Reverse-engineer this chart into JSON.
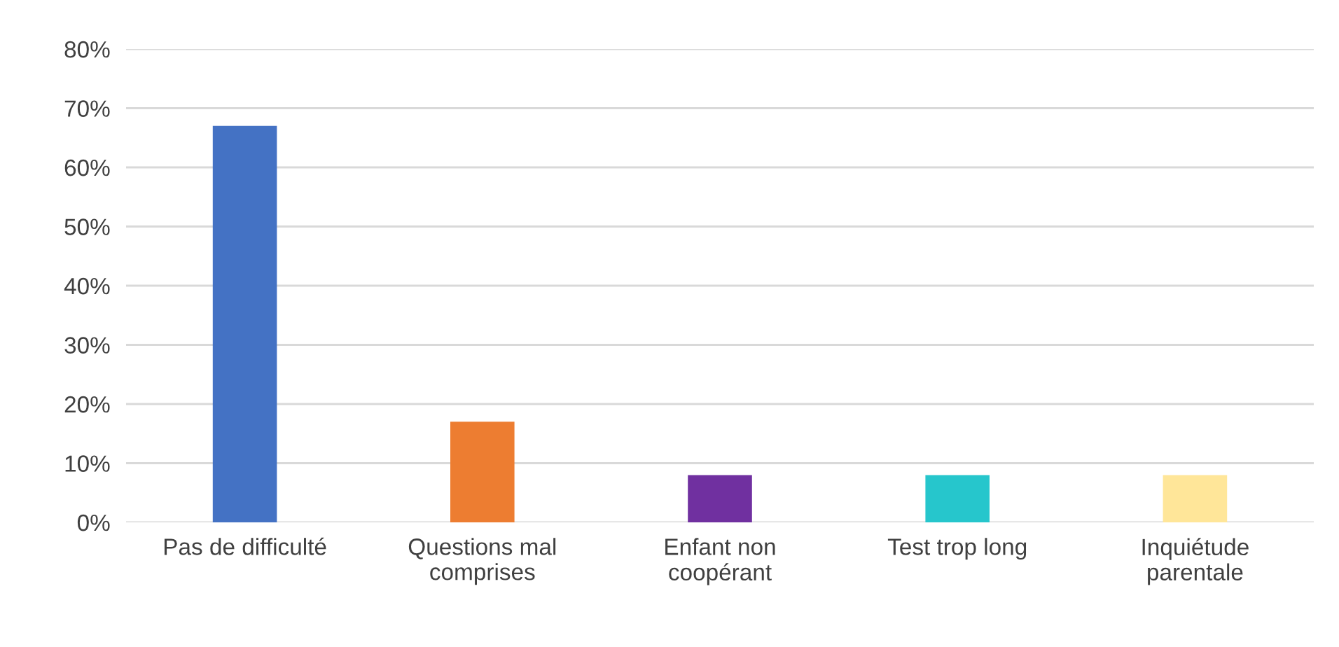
{
  "chart_data": {
    "type": "bar",
    "categories": [
      "Pas de difficulté",
      "Questions mal comprises",
      "Enfant non coopérant",
      "Test trop long",
      "Inquiétude parentale"
    ],
    "values": [
      67,
      17,
      8,
      8,
      8
    ],
    "colors": [
      "#4472c4",
      "#ed7d31",
      "#7030a0",
      "#26c6cc",
      "#ffe699"
    ],
    "ylim": [
      0,
      80
    ],
    "yticks": [
      {
        "value": 0,
        "label": "0%"
      },
      {
        "value": 10,
        "label": "10%"
      },
      {
        "value": 20,
        "label": "20%"
      },
      {
        "value": 30,
        "label": "30%"
      },
      {
        "value": 40,
        "label": "40%"
      },
      {
        "value": 50,
        "label": "50%"
      },
      {
        "value": 60,
        "label": "60%"
      },
      {
        "value": 70,
        "label": "70%"
      },
      {
        "value": 80,
        "label": "80%"
      }
    ],
    "grid": "y"
  }
}
